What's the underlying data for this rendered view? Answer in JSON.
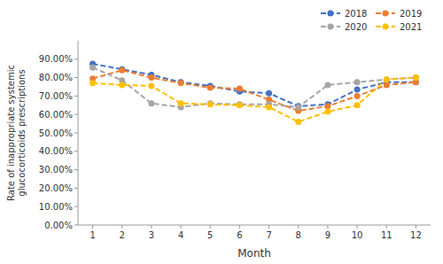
{
  "chart_data": {
    "type": "line",
    "x": [
      1,
      2,
      3,
      4,
      5,
      6,
      7,
      8,
      9,
      10,
      11,
      12
    ],
    "series": [
      {
        "name": "2018",
        "color": "#4472C4",
        "values": [
          0.875,
          0.845,
          0.815,
          0.775,
          0.755,
          0.725,
          0.715,
          0.645,
          0.655,
          0.735,
          0.775,
          0.775
        ]
      },
      {
        "name": "2019",
        "color": "#ED7D31",
        "values": [
          0.795,
          0.84,
          0.8,
          0.77,
          0.745,
          0.74,
          0.68,
          0.62,
          0.645,
          0.7,
          0.76,
          0.775
        ]
      },
      {
        "name": "2020",
        "color": "#A5A5A5",
        "values": [
          0.855,
          0.785,
          0.66,
          0.64,
          0.66,
          0.655,
          0.655,
          0.64,
          0.76,
          0.775,
          0.79,
          0.8
        ]
      },
      {
        "name": "2021",
        "color": "#FFC000",
        "values": [
          0.77,
          0.76,
          0.755,
          0.66,
          0.655,
          0.65,
          0.64,
          0.56,
          0.615,
          0.65,
          0.79,
          0.8
        ]
      }
    ],
    "x_label": "Month",
    "y_label": "Rate of inappropriate systemic\nglucocorticoids prescriptions",
    "xlim": [
      0.5,
      12.5
    ],
    "xticks": [
      1,
      2,
      3,
      4,
      5,
      6,
      7,
      8,
      9,
      10,
      11,
      12
    ],
    "ylim": [
      0.0,
      1.0
    ],
    "yticks": [
      {
        "value": 0.0,
        "label": "0.00%"
      },
      {
        "value": 0.1,
        "label": "10.00%"
      },
      {
        "value": 0.2,
        "label": "20.00%"
      },
      {
        "value": 0.3,
        "label": "30.00%"
      },
      {
        "value": 0.4,
        "label": "40.00%"
      },
      {
        "value": 0.5,
        "label": "50.00%"
      },
      {
        "value": 0.6,
        "label": "60.00%"
      },
      {
        "value": 0.7,
        "label": "70.00%"
      },
      {
        "value": 0.8,
        "label": "80.00%"
      },
      {
        "value": 0.9,
        "label": "90.00%"
      }
    ],
    "grid": false,
    "legend": "upper right",
    "line_style": "dashed",
    "marker": "circle"
  }
}
